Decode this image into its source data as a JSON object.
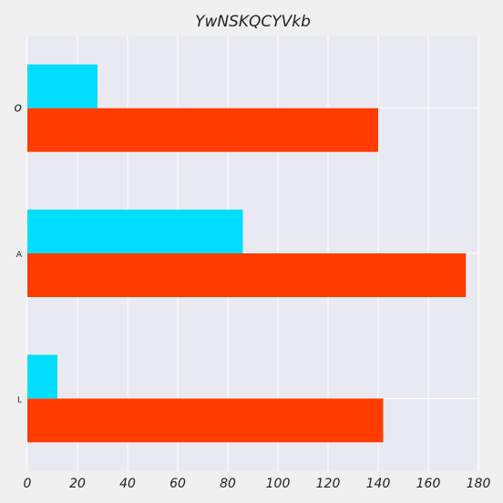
{
  "chart_data": {
    "type": "bar",
    "orientation": "horizontal",
    "title": "YwNSKQCYVkb",
    "xlabel": "",
    "ylabel": "",
    "categories": [
      "L",
      "A",
      "o"
    ],
    "series": [
      {
        "color": "#ff3b00",
        "values": [
          142,
          175,
          140
        ]
      },
      {
        "color": "#00ddff",
        "values": [
          12,
          86,
          28
        ]
      }
    ],
    "xlim": [
      0,
      180
    ],
    "xticks": [
      0,
      20,
      40,
      60,
      80,
      100,
      120,
      140,
      160,
      180
    ],
    "grid": true,
    "legend": "none",
    "colors": {
      "plot_background": "#e9e9f1",
      "page_background": "#f0f0f0",
      "grid": "#ffffff"
    }
  }
}
